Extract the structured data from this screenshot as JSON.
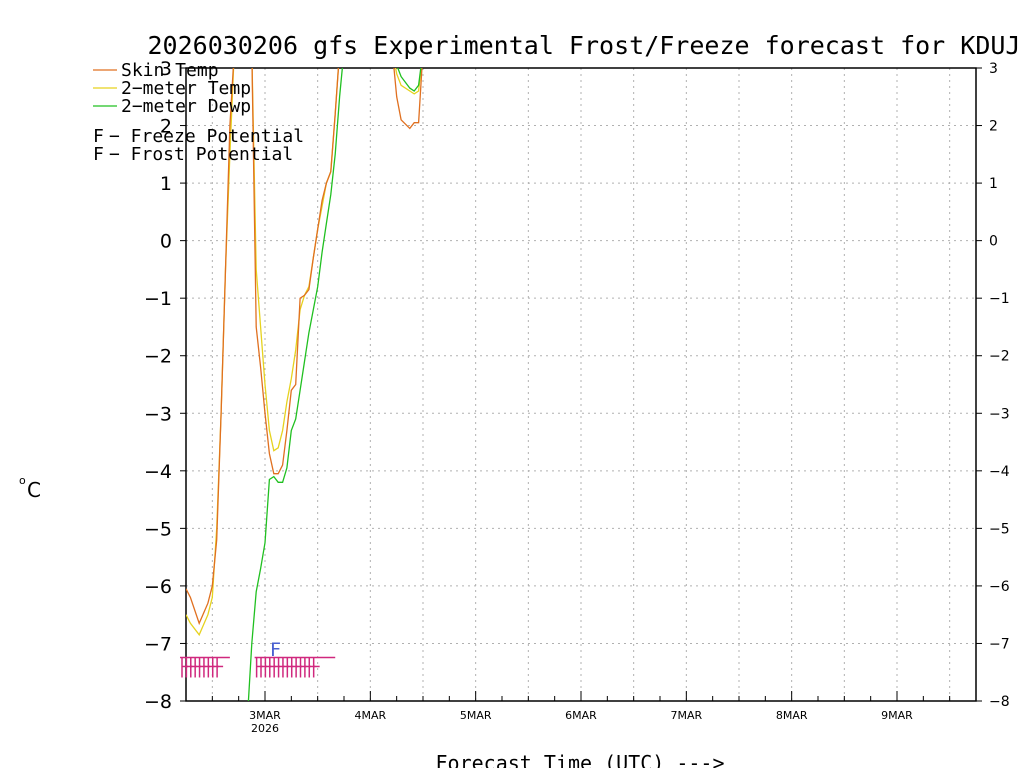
{
  "chart_data": {
    "type": "line",
    "title": "2026030206 gfs Experimental Frost/Freeze forecast for KDUJ",
    "ylabel": "°C",
    "ylabel_degree": "o",
    "ylabel_unit": "C",
    "xlabel": "Forecast Time (UTC) --->",
    "ylim": [
      -8,
      3
    ],
    "xlim": [
      6,
      186
    ],
    "y_ticks": [
      -8,
      -7,
      -6,
      -5,
      -4,
      -3,
      -2,
      -1,
      0,
      1,
      2,
      3
    ],
    "y_tick_labels": [
      "−8",
      "−7",
      "−6",
      "−5",
      "−4",
      "−3",
      "−2",
      "−1",
      "0",
      "1",
      "2",
      "3"
    ],
    "x_ticks": [
      {
        "hour": 24,
        "label": "3MAR",
        "sublabel": "2026"
      },
      {
        "hour": 48,
        "label": "4MAR"
      },
      {
        "hour": 72,
        "label": "5MAR"
      },
      {
        "hour": 96,
        "label": "6MAR"
      },
      {
        "hour": 120,
        "label": "7MAR"
      },
      {
        "hour": 144,
        "label": "8MAR"
      },
      {
        "hour": 168,
        "label": "9MAR"
      }
    ],
    "series": [
      {
        "name": "Skin Temp",
        "label": "Skin Temp",
        "color": "#e07020",
        "points": [
          [
            6,
            -6.05
          ],
          [
            7,
            -6.2
          ],
          [
            9,
            -6.65
          ],
          [
            11,
            -6.3
          ],
          [
            12,
            -6.0
          ],
          [
            13,
            -5.2
          ],
          [
            14,
            -3.0
          ],
          [
            15,
            -0.5
          ],
          [
            16,
            2.0
          ],
          [
            17,
            3.3
          ],
          [
            20,
            3.3
          ],
          [
            21,
            3.3
          ],
          [
            22,
            -1.5
          ],
          [
            23,
            -2.2
          ],
          [
            24,
            -3.0
          ],
          [
            25,
            -3.7
          ],
          [
            26,
            -4.05
          ],
          [
            27,
            -4.05
          ],
          [
            28,
            -3.9
          ],
          [
            29,
            -3.3
          ],
          [
            30,
            -2.6
          ],
          [
            31,
            -2.5
          ],
          [
            32,
            -1.0
          ],
          [
            33,
            -0.95
          ],
          [
            34,
            -0.85
          ],
          [
            35,
            -0.3
          ],
          [
            36,
            0.2
          ],
          [
            37,
            0.7
          ],
          [
            38,
            1.0
          ],
          [
            39,
            1.2
          ],
          [
            40,
            2.2
          ],
          [
            41,
            3.3
          ],
          [
            53,
            3.3
          ],
          [
            54,
            2.5
          ],
          [
            55,
            2.1
          ],
          [
            57,
            1.95
          ],
          [
            58,
            2.05
          ],
          [
            59,
            2.05
          ],
          [
            60,
            3.3
          ]
        ]
      },
      {
        "name": "2-meter Temp",
        "label": "2−meter Temp",
        "color": "#e6d21e",
        "points": [
          [
            6,
            -6.5
          ],
          [
            7,
            -6.65
          ],
          [
            9,
            -6.85
          ],
          [
            11,
            -6.5
          ],
          [
            12,
            -6.2
          ],
          [
            13,
            -5.0
          ],
          [
            14,
            -3.0
          ],
          [
            15,
            -0.5
          ],
          [
            16,
            1.5
          ],
          [
            17,
            3.3
          ],
          [
            20,
            3.3
          ],
          [
            21,
            3.3
          ],
          [
            22,
            -0.5
          ],
          [
            23,
            -1.5
          ],
          [
            24,
            -2.5
          ],
          [
            25,
            -3.3
          ],
          [
            26,
            -3.65
          ],
          [
            27,
            -3.6
          ],
          [
            28,
            -3.3
          ],
          [
            29,
            -2.8
          ],
          [
            30,
            -2.4
          ],
          [
            31,
            -1.9
          ],
          [
            32,
            -1.2
          ],
          [
            33,
            -0.95
          ],
          [
            34,
            -0.8
          ],
          [
            35,
            -0.3
          ],
          [
            36,
            0.2
          ],
          [
            37,
            0.6
          ],
          [
            38,
            1.0
          ],
          [
            39,
            1.2
          ],
          [
            40,
            2.2
          ],
          [
            41,
            3.3
          ],
          [
            53,
            3.3
          ],
          [
            54,
            2.9
          ],
          [
            55,
            2.7
          ],
          [
            57,
            2.6
          ],
          [
            58,
            2.55
          ],
          [
            59,
            2.6
          ],
          [
            60,
            3.3
          ]
        ]
      },
      {
        "name": "2-meter Dewp",
        "label": "2−meter Dewp",
        "color": "#20c020",
        "points": [
          [
            20,
            -8.3
          ],
          [
            21,
            -7.0
          ],
          [
            22,
            -6.1
          ],
          [
            23,
            -5.7
          ],
          [
            24,
            -5.25
          ],
          [
            25,
            -4.15
          ],
          [
            26,
            -4.1
          ],
          [
            27,
            -4.2
          ],
          [
            28,
            -4.2
          ],
          [
            29,
            -3.95
          ],
          [
            30,
            -3.3
          ],
          [
            31,
            -3.1
          ],
          [
            32,
            -2.6
          ],
          [
            33,
            -2.1
          ],
          [
            34,
            -1.6
          ],
          [
            35,
            -1.2
          ],
          [
            36,
            -0.8
          ],
          [
            37,
            -0.2
          ],
          [
            38,
            0.3
          ],
          [
            39,
            0.8
          ],
          [
            40,
            1.5
          ],
          [
            41,
            2.5
          ],
          [
            42,
            3.3
          ],
          [
            53,
            3.3
          ],
          [
            54,
            3.05
          ],
          [
            55,
            2.85
          ],
          [
            57,
            2.65
          ],
          [
            58,
            2.6
          ],
          [
            59,
            2.7
          ],
          [
            60,
            3.3
          ]
        ]
      }
    ],
    "freeze_potential": {
      "label": "Freeze Potential",
      "legend_prefix": "F",
      "legend_text": " − Freeze Potential",
      "color": "#d0287e",
      "level": -7.4,
      "segments": [
        [
          6,
          16
        ],
        [
          23,
          40
        ]
      ],
      "marker_hours": [
        6,
        7,
        8,
        9,
        10,
        11,
        12,
        13,
        14,
        23,
        24,
        25,
        26,
        27,
        28,
        29,
        30,
        31,
        32,
        33,
        34,
        35,
        36
      ]
    },
    "frost_potential": {
      "label": "Frost Potential",
      "legend_prefix": "F",
      "legend_text": " − Frost Potential",
      "color": "#4a60d0",
      "markers": [
        {
          "hour": 27,
          "value": -7.1,
          "text": "F"
        }
      ]
    }
  }
}
